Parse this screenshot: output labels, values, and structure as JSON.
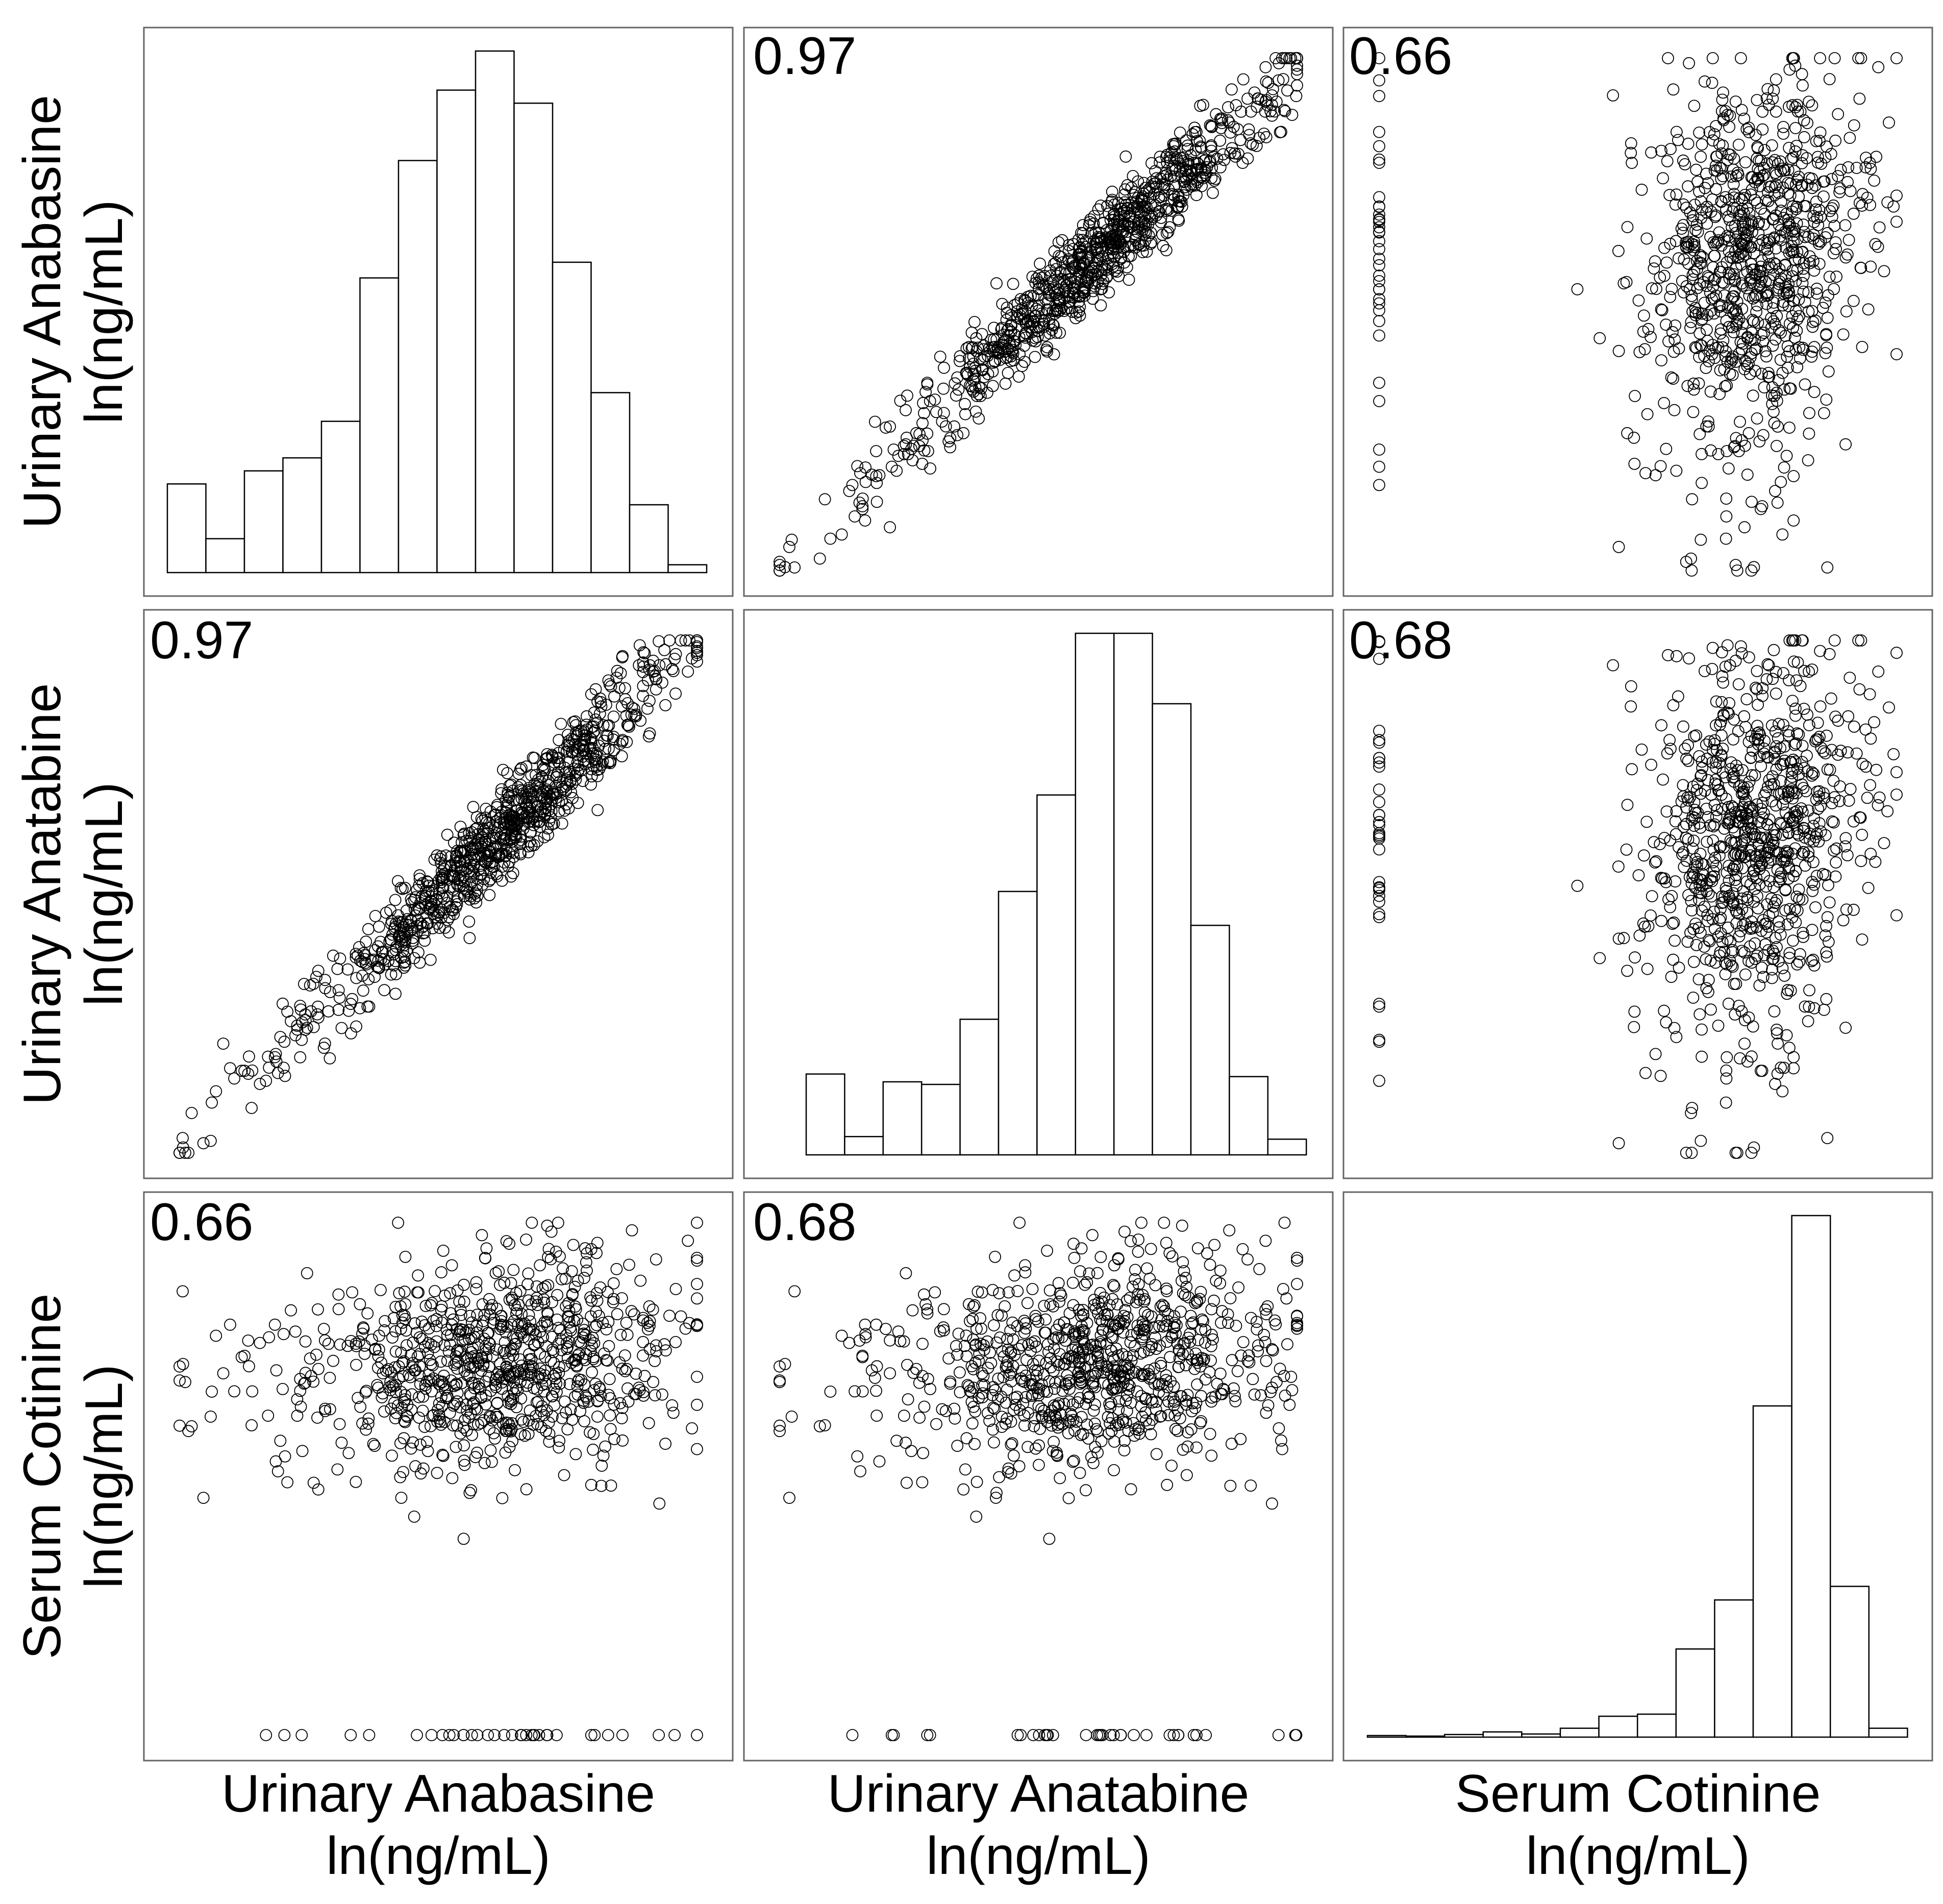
{
  "chart_data": {
    "type": "scatter-matrix",
    "variables": [
      {
        "name": "Urinary Anabasine",
        "unit": "ln(ng/mL)"
      },
      {
        "name": "Urinary Anatabine",
        "unit": "ln(ng/mL)"
      },
      {
        "name": "Serum Cotinine",
        "unit": "ln(ng/mL)"
      }
    ],
    "correlations": {
      "anabasine_anatabine": "0.97",
      "anabasine_cotinine": "0.66",
      "anatabine_cotinine": "0.68"
    },
    "histograms": [
      {
        "variable": "Urinary Anabasine",
        "relative_bin_heights": [
          0.17,
          0.065,
          0.195,
          0.22,
          0.29,
          0.565,
          0.79,
          0.925,
          1.0,
          0.9,
          0.595,
          0.345,
          0.13,
          0.015
        ]
      },
      {
        "variable": "Urinary Anatabine",
        "relative_bin_heights": [
          0.155,
          0.035,
          0.14,
          0.135,
          0.26,
          0.505,
          0.69,
          1.0,
          1.0,
          0.865,
          0.44,
          0.15,
          0.03
        ]
      },
      {
        "variable": "Serum Cotinine",
        "relative_bin_heights": [
          0.003,
          0.002,
          0.005,
          0.01,
          0.006,
          0.017,
          0.04,
          0.044,
          0.169,
          0.263,
          0.635,
          1.0,
          0.289,
          0.017
        ]
      }
    ],
    "marker": "open-circle",
    "n_points_per_scatter": 900
  },
  "panels": {
    "p_0_1": {
      "label": "0.97"
    },
    "p_0_2": {
      "label": "0.66"
    },
    "p_1_0": {
      "label": "0.97"
    },
    "p_1_2": {
      "label": "0.68"
    },
    "p_2_0": {
      "label": "0.66"
    },
    "p_2_1": {
      "label": "0.68"
    }
  },
  "labels": {
    "row_0": {
      "line1": "Urinary Anabasine",
      "line2": "ln(ng/mL)"
    },
    "row_1": {
      "line1": "Urinary Anatabine",
      "line2": "ln(ng/mL)"
    },
    "row_2": {
      "line1": "Serum Cotinine",
      "line2": "ln(ng/mL)"
    },
    "col_0": {
      "line1": "Urinary Anabasine",
      "line2": "ln(ng/mL)"
    },
    "col_1": {
      "line1": "Urinary Anatabine",
      "line2": "ln(ng/mL)"
    },
    "col_2": {
      "line1": "Serum Cotinine",
      "line2": "ln(ng/mL)"
    }
  }
}
